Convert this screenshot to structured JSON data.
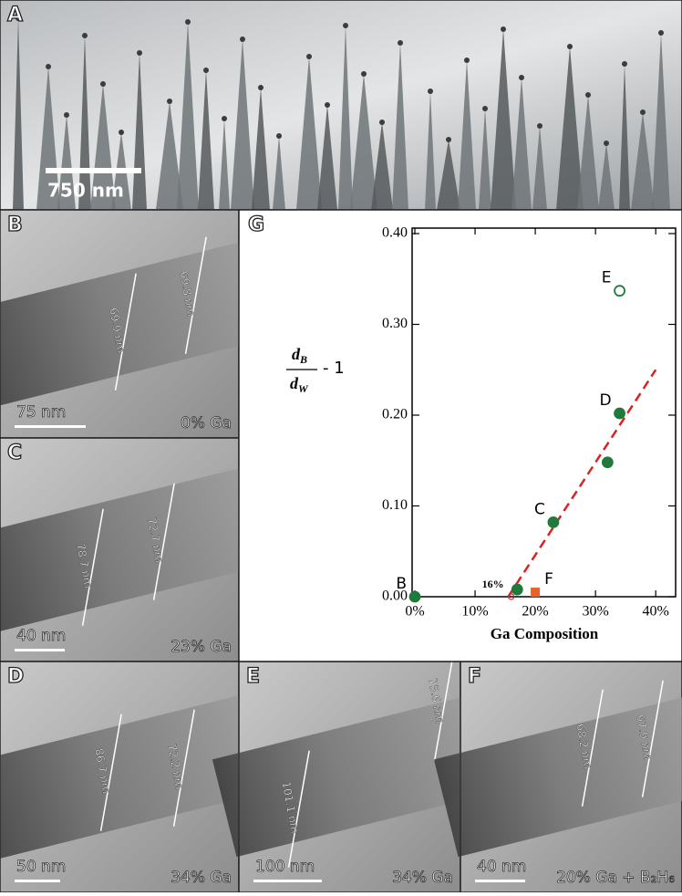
{
  "panels": [
    {
      "letter": "A",
      "scale_bar": "750 nm"
    },
    {
      "letter": "B",
      "scale_bar": "75 nm",
      "composition": "0% Ga",
      "measurements": [
        "69.9 nm",
        "69.8 nm"
      ]
    },
    {
      "letter": "C",
      "scale_bar": "40 nm",
      "composition": "23% Ga",
      "measurements": [
        "78.7 nm",
        "72.7 nm"
      ]
    },
    {
      "letter": "D",
      "scale_bar": "50 nm",
      "composition": "34% Ga",
      "measurements": [
        "86.7 nm",
        "72.2 nm"
      ]
    },
    {
      "letter": "E",
      "scale_bar": "100 nm",
      "composition": "34% Ga",
      "measurements": [
        "101.1 nm",
        "75.6 nm"
      ]
    },
    {
      "letter": "F",
      "scale_bar": "40 nm",
      "composition": "20% Ga + B₂H₆",
      "measurements": [
        "68.2 nm",
        "67.9 nm"
      ]
    }
  ],
  "chart_data": {
    "type": "scatter",
    "letter": "G",
    "x_label": "Ga Composition",
    "y_label": {
      "numerator": "d",
      "numerator_sub": "B",
      "denominator": "d",
      "denominator_sub": "W",
      "suffix": "- 1"
    },
    "xlim": [
      0,
      43
    ],
    "ylim": [
      0,
      0.4
    ],
    "xticks": [
      {
        "value": 0,
        "label": "0%"
      },
      {
        "value": 10,
        "label": "10%"
      },
      {
        "value": 20,
        "label": "20%"
      },
      {
        "value": 30,
        "label": "30%"
      },
      {
        "value": 40,
        "label": "40%"
      }
    ],
    "yticks": [
      {
        "value": 0,
        "label": "0.00"
      },
      {
        "value": 0.1,
        "label": "0.10"
      },
      {
        "value": 0.2,
        "label": "0.20"
      },
      {
        "value": 0.3,
        "label": "0.30"
      },
      {
        "value": 0.4,
        "label": "0.40"
      }
    ],
    "series": [
      {
        "color": "#1f7a3c",
        "marker": "circle",
        "x": [
          0,
          17,
          23,
          32,
          34
        ],
        "values": [
          0,
          0.008,
          0.082,
          0.148,
          0.202
        ],
        "point_labels": [
          "B",
          null,
          "C",
          null,
          "D"
        ]
      },
      {
        "color": "#1f7a3c",
        "marker": "open-circle",
        "x": [
          34
        ],
        "values": [
          0.337
        ],
        "point_labels": [
          "E"
        ]
      },
      {
        "color": "#e8632c",
        "marker": "square",
        "x": [
          20
        ],
        "values": [
          0.005
        ],
        "point_labels": [
          "F"
        ]
      }
    ],
    "fit_line": {
      "color": "#d92323",
      "x": [
        15.5,
        40
      ],
      "values": [
        0,
        0.25
      ]
    },
    "intercept": {
      "x": 16,
      "value": 0,
      "label": "16%"
    }
  }
}
